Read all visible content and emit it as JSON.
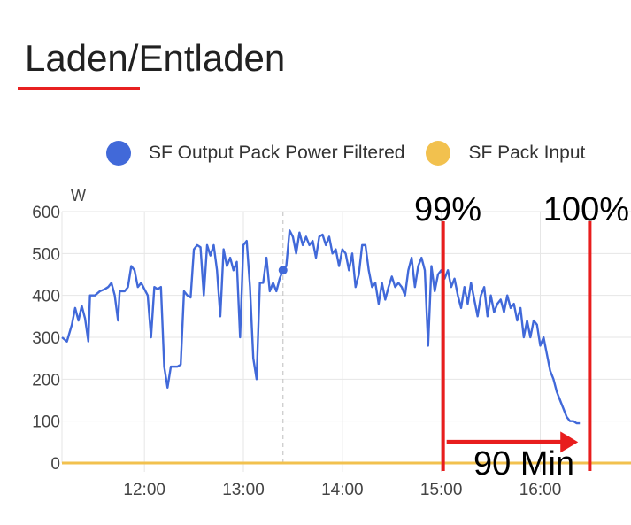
{
  "card": {
    "title": "Laden/Entladen"
  },
  "colors": {
    "output": "#4169d9",
    "input": "#f2c14e",
    "annotation": "#e81d1d",
    "grid": "#e6e6e6"
  },
  "chart_data": {
    "type": "line",
    "title": "Laden/Entladen",
    "ylabel": "W",
    "ylim": [
      0,
      600
    ],
    "y_ticks": [
      "0",
      "100",
      "200",
      "300",
      "400",
      "500",
      "600"
    ],
    "xlim": [
      "11:10",
      "16:55"
    ],
    "x_ticks": [
      "12:00",
      "13:00",
      "14:00",
      "15:00",
      "16:00"
    ],
    "grid": true,
    "legend_position": "top",
    "cursor_time": "13:24",
    "series": [
      {
        "name": "SF Output Pack Power Filtered",
        "color": "#4169d9",
        "points": [
          [
            "11:10",
            300
          ],
          [
            "11:13",
            290
          ],
          [
            "11:16",
            330
          ],
          [
            "11:18",
            370
          ],
          [
            "11:20",
            340
          ],
          [
            "11:22",
            375
          ],
          [
            "11:24",
            345
          ],
          [
            "11:26",
            290
          ],
          [
            "11:27",
            400
          ],
          [
            "11:30",
            400
          ],
          [
            "11:33",
            410
          ],
          [
            "11:36",
            415
          ],
          [
            "11:38",
            420
          ],
          [
            "11:40",
            430
          ],
          [
            "11:42",
            400
          ],
          [
            "11:44",
            340
          ],
          [
            "11:45",
            410
          ],
          [
            "11:48",
            410
          ],
          [
            "11:50",
            420
          ],
          [
            "11:52",
            470
          ],
          [
            "11:54",
            460
          ],
          [
            "11:56",
            420
          ],
          [
            "11:58",
            430
          ],
          [
            "12:00",
            415
          ],
          [
            "12:02",
            400
          ],
          [
            "12:04",
            300
          ],
          [
            "12:06",
            420
          ],
          [
            "12:08",
            415
          ],
          [
            "12:10",
            420
          ],
          [
            "12:12",
            230
          ],
          [
            "12:14",
            180
          ],
          [
            "12:16",
            230
          ],
          [
            "12:20",
            230
          ],
          [
            "12:22",
            235
          ],
          [
            "12:24",
            410
          ],
          [
            "12:26",
            400
          ],
          [
            "12:28",
            395
          ],
          [
            "12:30",
            510
          ],
          [
            "12:32",
            520
          ],
          [
            "12:34",
            515
          ],
          [
            "12:36",
            400
          ],
          [
            "12:38",
            520
          ],
          [
            "12:40",
            495
          ],
          [
            "12:42",
            520
          ],
          [
            "12:44",
            460
          ],
          [
            "12:46",
            350
          ],
          [
            "12:48",
            510
          ],
          [
            "12:50",
            470
          ],
          [
            "12:52",
            490
          ],
          [
            "12:54",
            460
          ],
          [
            "12:56",
            480
          ],
          [
            "12:58",
            300
          ],
          [
            "13:00",
            520
          ],
          [
            "13:02",
            530
          ],
          [
            "13:04",
            420
          ],
          [
            "13:06",
            250
          ],
          [
            "13:08",
            200
          ],
          [
            "13:10",
            430
          ],
          [
            "13:12",
            430
          ],
          [
            "13:14",
            490
          ],
          [
            "13:16",
            410
          ],
          [
            "13:18",
            430
          ],
          [
            "13:20",
            410
          ],
          [
            "13:22",
            440
          ],
          [
            "13:24",
            460
          ],
          [
            "13:26",
            470
          ],
          [
            "13:28",
            555
          ],
          [
            "13:30",
            540
          ],
          [
            "13:32",
            500
          ],
          [
            "13:34",
            550
          ],
          [
            "13:36",
            520
          ],
          [
            "13:38",
            540
          ],
          [
            "13:40",
            520
          ],
          [
            "13:42",
            530
          ],
          [
            "13:44",
            490
          ],
          [
            "13:46",
            540
          ],
          [
            "13:48",
            545
          ],
          [
            "13:50",
            520
          ],
          [
            "13:52",
            540
          ],
          [
            "13:54",
            500
          ],
          [
            "13:56",
            510
          ],
          [
            "13:58",
            470
          ],
          [
            "14:00",
            510
          ],
          [
            "14:02",
            500
          ],
          [
            "14:04",
            460
          ],
          [
            "14:06",
            500
          ],
          [
            "14:08",
            420
          ],
          [
            "14:10",
            450
          ],
          [
            "14:12",
            520
          ],
          [
            "14:14",
            520
          ],
          [
            "14:16",
            460
          ],
          [
            "14:18",
            420
          ],
          [
            "14:20",
            430
          ],
          [
            "14:22",
            380
          ],
          [
            "14:24",
            430
          ],
          [
            "14:26",
            390
          ],
          [
            "14:28",
            420
          ],
          [
            "14:30",
            445
          ],
          [
            "14:32",
            420
          ],
          [
            "14:34",
            430
          ],
          [
            "14:36",
            420
          ],
          [
            "14:38",
            400
          ],
          [
            "14:40",
            460
          ],
          [
            "14:42",
            490
          ],
          [
            "14:44",
            420
          ],
          [
            "14:46",
            470
          ],
          [
            "14:48",
            490
          ],
          [
            "14:50",
            460
          ],
          [
            "14:52",
            280
          ],
          [
            "14:54",
            470
          ],
          [
            "14:56",
            410
          ],
          [
            "14:58",
            450
          ],
          [
            "15:00",
            460
          ],
          [
            "15:02",
            440
          ],
          [
            "15:04",
            460
          ],
          [
            "15:06",
            420
          ],
          [
            "15:08",
            440
          ],
          [
            "15:10",
            400
          ],
          [
            "15:12",
            370
          ],
          [
            "15:14",
            420
          ],
          [
            "15:16",
            380
          ],
          [
            "15:18",
            430
          ],
          [
            "15:20",
            390
          ],
          [
            "15:22",
            350
          ],
          [
            "15:24",
            400
          ],
          [
            "15:26",
            420
          ],
          [
            "15:28",
            350
          ],
          [
            "15:30",
            400
          ],
          [
            "15:32",
            360
          ],
          [
            "15:34",
            380
          ],
          [
            "15:36",
            390
          ],
          [
            "15:38",
            360
          ],
          [
            "15:40",
            400
          ],
          [
            "15:42",
            370
          ],
          [
            "15:44",
            380
          ],
          [
            "15:46",
            340
          ],
          [
            "15:48",
            370
          ],
          [
            "15:50",
            300
          ],
          [
            "15:52",
            340
          ],
          [
            "15:54",
            300
          ],
          [
            "15:56",
            340
          ],
          [
            "15:58",
            330
          ],
          [
            "16:00",
            280
          ],
          [
            "16:02",
            300
          ],
          [
            "16:04",
            260
          ],
          [
            "16:06",
            220
          ],
          [
            "16:08",
            200
          ],
          [
            "16:10",
            170
          ],
          [
            "16:12",
            150
          ],
          [
            "16:14",
            130
          ],
          [
            "16:16",
            110
          ],
          [
            "16:18",
            100
          ],
          [
            "16:20",
            100
          ],
          [
            "16:22",
            95
          ],
          [
            "16:24",
            95
          ]
        ]
      },
      {
        "name": "SF Pack Input",
        "color": "#f2c14e",
        "points": [
          [
            "11:10",
            0
          ],
          [
            "16:55",
            0
          ]
        ]
      }
    ],
    "annotations": {
      "label_99": "99%",
      "label_100": "100%",
      "duration": "90 Min",
      "line_99_time": "15:00",
      "line_100_time": "16:30",
      "arrow_from": "15:00",
      "arrow_to": "16:24",
      "arrow_value": 50
    }
  }
}
